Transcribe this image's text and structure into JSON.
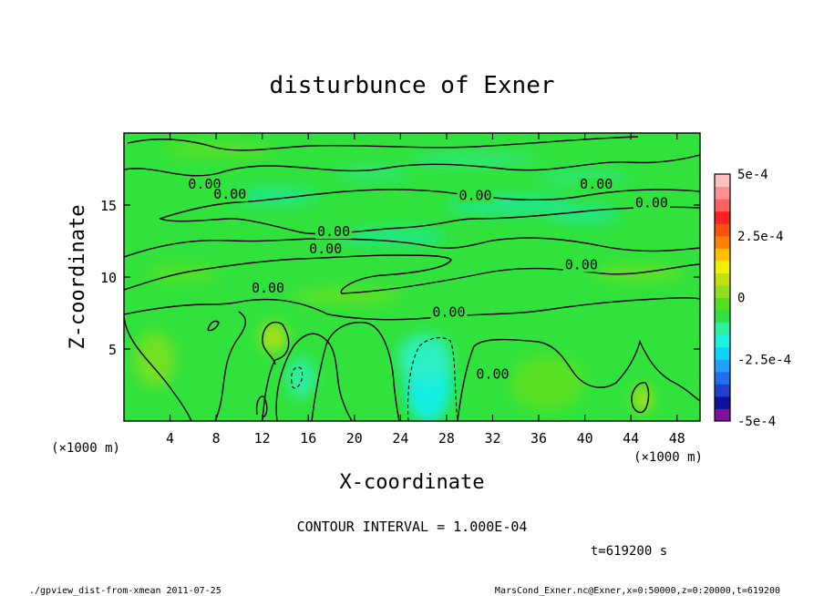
{
  "chart_data": {
    "type": "heatmap",
    "title": "disturbunce of Exner",
    "xlabel": "X-coordinate",
    "ylabel": "Z-coordinate",
    "x_unit": "(×1000 m)",
    "x_unit_right": "(×1000 m)",
    "xlim": [
      0,
      50
    ],
    "ylim": [
      0,
      20
    ],
    "x_ticks": [
      4,
      8,
      12,
      16,
      20,
      24,
      28,
      32,
      36,
      40,
      44,
      48
    ],
    "y_ticks": [
      5,
      10,
      15
    ],
    "colorbar": {
      "range": [
        -0.0005,
        0.0005
      ],
      "tick_labels": [
        "5e-4",
        "2.5e-4",
        "0",
        "-2.5e-4",
        "-5e-4"
      ],
      "tick_values": [
        0.0005,
        0.00025,
        0,
        -0.00025,
        -0.0005
      ],
      "colors": [
        "#7f0f9f",
        "#1010a0",
        "#1f3fcf",
        "#1f6fef",
        "#1fa0ff",
        "#10d0ff",
        "#20f0e0",
        "#30f0a0",
        "#2fe040",
        "#50e020",
        "#90e020",
        "#c0e010",
        "#f0f000",
        "#ffc000",
        "#ff8000",
        "#ff5010",
        "#ff2020",
        "#ff6060",
        "#ff9090",
        "#ffc0c0"
      ]
    },
    "contour_interval": "CONTOUR INTERVAL = 1.000E-04",
    "contour_labels": [
      {
        "text": "0.00",
        "x": 7.0,
        "z": 16.2
      },
      {
        "text": "0.00",
        "x": 9.2,
        "z": 15.5
      },
      {
        "text": "0.00",
        "x": 30.5,
        "z": 15.4
      },
      {
        "text": "0.00",
        "x": 41.0,
        "z": 16.2
      },
      {
        "text": "0.00",
        "x": 45.8,
        "z": 14.9
      },
      {
        "text": "0.00",
        "x": 18.2,
        "z": 12.9
      },
      {
        "text": "0.00",
        "x": 17.5,
        "z": 11.7
      },
      {
        "text": "0.00",
        "x": 39.7,
        "z": 10.6
      },
      {
        "text": "0.00",
        "x": 12.5,
        "z": 9.0
      },
      {
        "text": "0.00",
        "x": 28.2,
        "z": 7.3
      },
      {
        "text": "0.00",
        "x": 32.0,
        "z": 3.0
      }
    ],
    "grid": false
  },
  "time_label": "t=619200 s",
  "footer_left": "./gpview_dist-from-xmean  2011-07-25",
  "footer_right": "MarsCond_Exner.nc@Exner,x=0:50000,z=0:20000,t=619200"
}
